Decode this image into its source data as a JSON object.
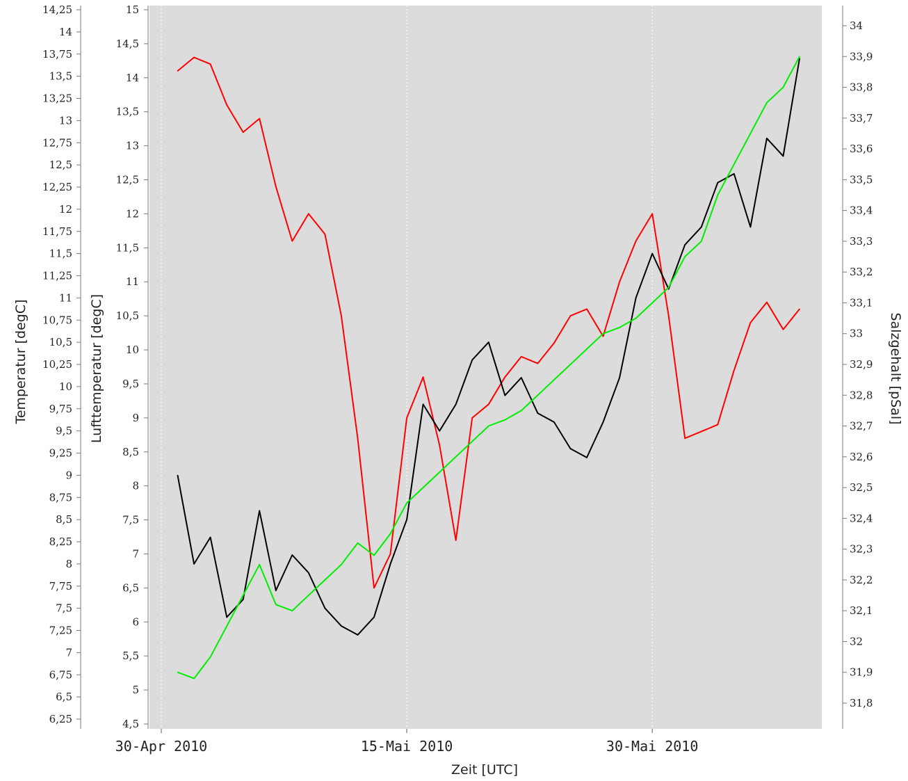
{
  "chart_data": {
    "type": "line",
    "xlabel": "Zeit [UTC]",
    "x_ticks": [
      "30-Apr 2010",
      "15-Mai 2010",
      "30-Mai 2010"
    ],
    "x_range": [
      "2010-04-30",
      "2010-06-08"
    ],
    "grid": true,
    "axes": {
      "temperatur": {
        "label": "Temperatur  [degC]",
        "range": [
          6.15,
          14.3
        ],
        "ticks": [
          "6,25",
          "6,5",
          "6,75",
          "7",
          "7,25",
          "7,5",
          "7,75",
          "8",
          "8,25",
          "8,5",
          "8,75",
          "9",
          "9,25",
          "9,5",
          "9,75",
          "10",
          "10,25",
          "10,5",
          "10,75",
          "11",
          "11,25",
          "11,5",
          "11,75",
          "12",
          "12,25",
          "12,5",
          "12,75",
          "13",
          "13,25",
          "13,5",
          "13,75",
          "14",
          "14,25"
        ]
      },
      "lufttemperatur": {
        "label": "Lufttemperatur  [degC]",
        "range": [
          4.5,
          15.0
        ],
        "ticks": [
          "4,5",
          "5",
          "5,5",
          "6",
          "6,5",
          "7",
          "7,5",
          "8",
          "8,5",
          "9",
          "9,5",
          "10",
          "10,5",
          "11",
          "11,5",
          "12",
          "12,5",
          "13",
          "13,5",
          "14",
          "14,5",
          "15"
        ]
      },
      "salzgehalt": {
        "label": "Salzgehalt  [pSal]",
        "range": [
          31.72,
          34.05
        ],
        "ticks": [
          "31,8",
          "31,9",
          "32",
          "32,1",
          "32,2",
          "32,3",
          "32,4",
          "32,5",
          "32,6",
          "32,7",
          "32,8",
          "32,9",
          "33",
          "33,1",
          "33,2",
          "33,3",
          "33,4",
          "33,5",
          "33,6",
          "33,7",
          "33,8",
          "33,9",
          "34"
        ]
      }
    },
    "series": [
      {
        "color": "#ff0000",
        "axis": "lufttemperatur",
        "x": [
          "2010-05-01",
          "2010-05-02",
          "2010-05-03",
          "2010-05-04",
          "2010-05-05",
          "2010-05-06",
          "2010-05-07",
          "2010-05-08",
          "2010-05-09",
          "2010-05-10",
          "2010-05-11",
          "2010-05-12",
          "2010-05-13",
          "2010-05-14",
          "2010-05-15",
          "2010-05-16",
          "2010-05-17",
          "2010-05-18",
          "2010-05-19",
          "2010-05-20",
          "2010-05-21",
          "2010-05-22",
          "2010-05-23",
          "2010-05-24",
          "2010-05-25",
          "2010-05-26",
          "2010-05-27",
          "2010-05-28",
          "2010-05-29",
          "2010-05-30",
          "2010-05-31",
          "2010-06-01",
          "2010-06-02",
          "2010-06-03",
          "2010-06-04",
          "2010-06-05",
          "2010-06-06",
          "2010-06-07",
          "2010-06-08"
        ],
        "values": [
          14.1,
          14.3,
          14.2,
          13.6,
          13.2,
          13.4,
          12.4,
          11.6,
          12.0,
          11.7,
          10.5,
          8.7,
          6.5,
          7.0,
          9.0,
          9.6,
          8.6,
          7.2,
          9.0,
          9.2,
          9.6,
          9.9,
          9.8,
          10.1,
          10.5,
          10.6,
          10.2,
          11.0,
          11.6,
          12.0,
          10.5,
          8.7,
          8.8,
          8.9,
          9.7,
          10.4,
          10.7,
          10.3,
          10.6
        ]
      },
      {
        "color": "#000000",
        "axis": "temperatur",
        "x": [
          "2010-05-01",
          "2010-05-02",
          "2010-05-03",
          "2010-05-04",
          "2010-05-05",
          "2010-05-06",
          "2010-05-07",
          "2010-05-08",
          "2010-05-09",
          "2010-05-10",
          "2010-05-11",
          "2010-05-12",
          "2010-05-13",
          "2010-05-14",
          "2010-05-15",
          "2010-05-16",
          "2010-05-17",
          "2010-05-18",
          "2010-05-19",
          "2010-05-20",
          "2010-05-21",
          "2010-05-22",
          "2010-05-23",
          "2010-05-24",
          "2010-05-25",
          "2010-05-26",
          "2010-05-27",
          "2010-05-28",
          "2010-05-29",
          "2010-05-30",
          "2010-05-31",
          "2010-06-01",
          "2010-06-02",
          "2010-06-03",
          "2010-06-04",
          "2010-06-05",
          "2010-06-06",
          "2010-06-07",
          "2010-06-08"
        ],
        "values": [
          9.0,
          8.0,
          8.3,
          7.4,
          7.6,
          8.6,
          7.7,
          8.1,
          7.9,
          7.5,
          7.3,
          7.2,
          7.4,
          8.0,
          8.5,
          9.8,
          9.5,
          9.8,
          10.3,
          10.5,
          9.9,
          10.1,
          9.7,
          9.6,
          9.3,
          9.2,
          9.6,
          10.1,
          11.0,
          11.5,
          11.1,
          11.6,
          11.8,
          12.3,
          12.4,
          11.8,
          12.8,
          12.6,
          13.7
        ]
      },
      {
        "color": "#00ee00",
        "axis": "salzgehalt",
        "x": [
          "2010-05-01",
          "2010-05-02",
          "2010-05-03",
          "2010-05-04",
          "2010-05-05",
          "2010-05-06",
          "2010-05-07",
          "2010-05-08",
          "2010-05-09",
          "2010-05-10",
          "2010-05-11",
          "2010-05-12",
          "2010-05-13",
          "2010-05-14",
          "2010-05-15",
          "2010-05-16",
          "2010-05-17",
          "2010-05-18",
          "2010-05-19",
          "2010-05-20",
          "2010-05-21",
          "2010-05-22",
          "2010-05-23",
          "2010-05-24",
          "2010-05-25",
          "2010-05-26",
          "2010-05-27",
          "2010-05-28",
          "2010-05-29",
          "2010-05-30",
          "2010-05-31",
          "2010-06-01",
          "2010-06-02",
          "2010-06-03",
          "2010-06-04",
          "2010-06-05",
          "2010-06-06",
          "2010-06-07",
          "2010-06-08"
        ],
        "values": [
          31.9,
          31.88,
          31.95,
          32.05,
          32.15,
          32.25,
          32.12,
          32.1,
          32.15,
          32.2,
          32.25,
          32.32,
          32.28,
          32.35,
          32.45,
          32.5,
          32.55,
          32.6,
          32.65,
          32.7,
          32.72,
          32.75,
          32.8,
          32.85,
          32.9,
          32.95,
          33.0,
          33.02,
          33.05,
          33.1,
          33.15,
          33.25,
          33.3,
          33.45,
          33.55,
          33.65,
          33.75,
          33.8,
          33.9
        ]
      }
    ]
  }
}
